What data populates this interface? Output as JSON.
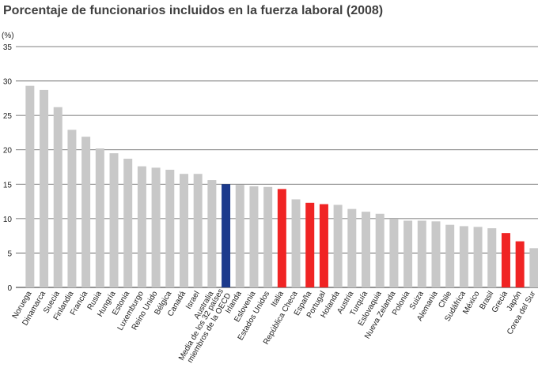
{
  "chart_data": {
    "type": "bar",
    "title": "Porcentaje de funcionarios incluidos en la fuerza laboral (2008)",
    "ylabel": "(%)",
    "xlabel": "",
    "ylim": [
      0,
      35
    ],
    "yticks": [
      0,
      5,
      10,
      15,
      20,
      25,
      30,
      35
    ],
    "grid": true,
    "categories": [
      "Noruega",
      "Dinamarca",
      "Suecia",
      "Finlandia",
      "Francia",
      "Rusia",
      "Hungría",
      "Estonia",
      "Luxemburgo",
      "Reino Unido",
      "Bélgica",
      "Canadá",
      "Israel",
      "Australia",
      "Media de los 32 países miembros de la OECD",
      "Irlanda",
      "Eslovenia",
      "Estados Unidos",
      "Italia",
      "República Checa",
      "España",
      "Portugal",
      "Holanda",
      "Austria",
      "Turquía",
      "Eslovaquia",
      "Nueva Zelanda",
      "Polonia",
      "Suiza",
      "Alemania",
      "Chile",
      "Sudáfrica",
      "México",
      "Brasil",
      "Grecia",
      "Japón",
      "Corea del Sur"
    ],
    "values": [
      29.3,
      28.7,
      26.2,
      22.9,
      21.9,
      20.2,
      19.5,
      18.7,
      17.6,
      17.4,
      17.1,
      16.5,
      16.5,
      15.6,
      15.0,
      14.9,
      14.7,
      14.6,
      14.3,
      12.8,
      12.3,
      12.1,
      12.0,
      11.4,
      11.0,
      10.7,
      9.9,
      9.7,
      9.7,
      9.6,
      9.1,
      8.9,
      8.8,
      8.6,
      7.9,
      6.7,
      5.7
    ],
    "highlight": {
      "Media de los 32 países miembros de la OECD": "#1c3a8c",
      "Italia": "#f02424",
      "España": "#f02424",
      "Portugal": "#f02424",
      "Grecia": "#f02424",
      "Japón": "#f02424"
    },
    "colors": {
      "default": "#c8c8c8",
      "grid": "#555555"
    }
  }
}
